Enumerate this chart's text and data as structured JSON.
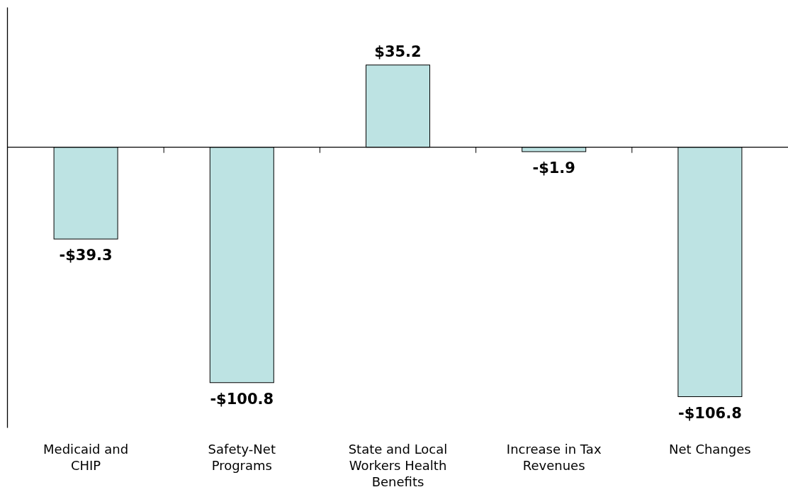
{
  "chart_data": {
    "type": "bar",
    "categories": [
      "Medicaid and CHIP",
      "Safety-Net Programs",
      "State and Local Workers Health Benefits",
      "Increase in Tax Revenues",
      "Net Changes"
    ],
    "values": [
      -39.3,
      -100.8,
      35.2,
      -1.9,
      -106.8
    ],
    "value_labels": [
      "-$39.3",
      "-$100.8",
      "$35.2",
      "-$1.9",
      "-$106.8"
    ],
    "color": "#bde3e3",
    "ylim": [
      -120,
      60
    ],
    "tick_labels": "x",
    "grid": false
  }
}
